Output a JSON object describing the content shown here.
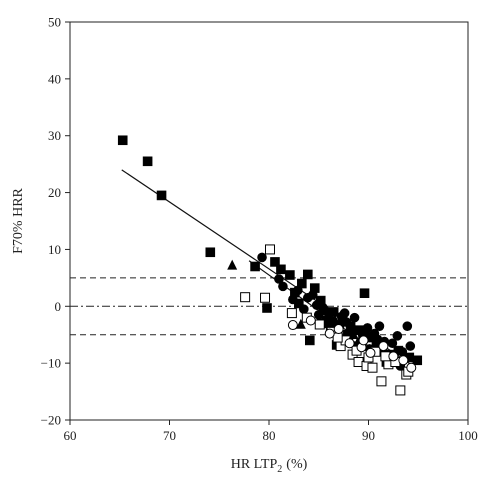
{
  "chart_data": {
    "type": "scatter",
    "title": "",
    "xlabel": "HR LTP",
    "xlabel_sub": "2",
    "xlabel_unit": "(%)",
    "ylabel": "F70% HRR",
    "xlim": [
      60,
      100
    ],
    "ylim": [
      -20,
      50
    ],
    "xticks": [
      60,
      70,
      80,
      90,
      100
    ],
    "yticks": [
      -20,
      -10,
      0,
      10,
      20,
      30,
      40,
      50
    ],
    "grid": false,
    "legend": "none",
    "reference_lines": {
      "mean": 0,
      "upper_limit": 5,
      "lower_limit": -5
    },
    "regression_lines": [
      {
        "from": [
          65.2,
          24
        ],
        "to": [
          94.5,
          -10.5
        ]
      },
      {
        "from": [
          78,
          8
        ],
        "to": [
          94,
          -12
        ]
      }
    ],
    "series": [
      {
        "marker": "filled-square",
        "points": [
          [
            65.3,
            29.2
          ],
          [
            67.8,
            25.5
          ],
          [
            69.2,
            19.5
          ],
          [
            74.1,
            9.5
          ],
          [
            78.6,
            7.0
          ],
          [
            79.8,
            -0.3
          ],
          [
            80.6,
            7.8
          ],
          [
            81.2,
            6.5
          ],
          [
            82.1,
            5.5
          ],
          [
            82.6,
            2.4
          ],
          [
            83.3,
            4.0
          ],
          [
            83.9,
            5.6
          ],
          [
            84.1,
            -6.0
          ],
          [
            85.2,
            1.0
          ],
          [
            85.8,
            -2.5
          ],
          [
            86.2,
            -4.0
          ],
          [
            86.8,
            -6.8
          ],
          [
            87.4,
            -2.0
          ],
          [
            88.2,
            -3.5
          ],
          [
            88.9,
            -7.0
          ],
          [
            89.6,
            2.3
          ],
          [
            90.3,
            -5.5
          ],
          [
            91.2,
            -7.5
          ],
          [
            92.1,
            -8.5
          ],
          [
            93.0,
            -7.8
          ],
          [
            94.1,
            -9.0
          ],
          [
            94.9,
            -9.5
          ],
          [
            83.0,
            0.5
          ],
          [
            84.6,
            3.2
          ],
          [
            86.5,
            -1.0
          ],
          [
            87.9,
            -5.0
          ],
          [
            89.1,
            -4.2
          ],
          [
            90.8,
            -6.8
          ],
          [
            91.8,
            -9.8
          ],
          [
            85.5,
            -3.0
          ]
        ]
      },
      {
        "marker": "filled-circle",
        "points": [
          [
            79.3,
            8.6
          ],
          [
            81.4,
            3.5
          ],
          [
            82.4,
            1.2
          ],
          [
            83.5,
            -0.5
          ],
          [
            84.4,
            2.0
          ],
          [
            85.0,
            -1.5
          ],
          [
            85.7,
            -0.8
          ],
          [
            86.4,
            -2.8
          ],
          [
            87.1,
            -3.5
          ],
          [
            87.6,
            -1.2
          ],
          [
            88.3,
            -4.5
          ],
          [
            88.6,
            -2.0
          ],
          [
            89.4,
            -5.0
          ],
          [
            89.9,
            -3.8
          ],
          [
            90.6,
            -4.8
          ],
          [
            91.1,
            -3.5
          ],
          [
            91.6,
            -6.2
          ],
          [
            92.4,
            -6.5
          ],
          [
            92.9,
            -5.2
          ],
          [
            93.4,
            -8.0
          ],
          [
            93.9,
            -3.5
          ],
          [
            94.2,
            -7.0
          ],
          [
            81.0,
            4.8
          ],
          [
            82.9,
            2.8
          ],
          [
            84.8,
            0.2
          ],
          [
            86.0,
            -2.2
          ],
          [
            87.3,
            -1.8
          ],
          [
            88.0,
            -6.0
          ],
          [
            89.2,
            -6.2
          ],
          [
            90.1,
            -7.5
          ],
          [
            90.9,
            -5.8
          ],
          [
            92.2,
            -9.2
          ],
          [
            93.2,
            -10.5
          ],
          [
            86.7,
            -3.3
          ],
          [
            88.7,
            -4.2
          ],
          [
            91.4,
            -8.0
          ],
          [
            83.9,
            1.5
          ],
          [
            85.4,
            -0.2
          ],
          [
            87.8,
            -2.8
          ],
          [
            89.7,
            -4.6
          ]
        ]
      },
      {
        "marker": "open-square",
        "points": [
          [
            77.6,
            1.6
          ],
          [
            79.6,
            1.5
          ],
          [
            80.1,
            10.0
          ],
          [
            82.3,
            -1.2
          ],
          [
            83.8,
            -2.0
          ],
          [
            85.1,
            -3.2
          ],
          [
            86.3,
            -4.5
          ],
          [
            87.2,
            -7.0
          ],
          [
            88.4,
            -8.5
          ],
          [
            89.0,
            -9.8
          ],
          [
            89.8,
            -10.5
          ],
          [
            90.4,
            -10.8
          ],
          [
            91.3,
            -13.2
          ],
          [
            92.0,
            -10.2
          ],
          [
            92.7,
            -9.8
          ],
          [
            93.2,
            -14.8
          ],
          [
            93.8,
            -12.0
          ],
          [
            94.0,
            -11.5
          ],
          [
            87.7,
            -6.0
          ],
          [
            90.0,
            -9.0
          ],
          [
            91.7,
            -8.8
          ],
          [
            86.9,
            -5.5
          ],
          [
            88.8,
            -7.8
          ],
          [
            90.7,
            -8.0
          ]
        ]
      },
      {
        "marker": "open-circle",
        "points": [
          [
            82.4,
            -3.3
          ],
          [
            84.2,
            -2.5
          ],
          [
            86.1,
            -4.8
          ],
          [
            88.1,
            -6.5
          ],
          [
            89.3,
            -7.2
          ],
          [
            90.2,
            -8.2
          ],
          [
            91.5,
            -7.0
          ],
          [
            92.5,
            -8.8
          ],
          [
            93.5,
            -9.5
          ],
          [
            94.3,
            -10.8
          ],
          [
            87.0,
            -4.0
          ],
          [
            89.5,
            -6.0
          ]
        ]
      },
      {
        "marker": "filled-triangle",
        "points": [
          [
            76.3,
            7.2
          ],
          [
            83.2,
            -3.2
          ],
          [
            86.6,
            -2.3
          ],
          [
            88.5,
            -5.0
          ]
        ]
      }
    ]
  }
}
